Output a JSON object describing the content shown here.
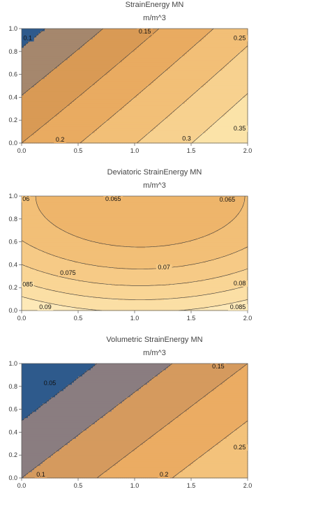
{
  "chart_data": [
    {
      "type": "contour",
      "title": "StrainEnergy MN",
      "subtitle": "m/m^3",
      "xlim": [
        0,
        2
      ],
      "ylim": [
        0,
        1
      ],
      "x_ticks": [
        "0.0",
        "0.5",
        "1.0",
        "1.5",
        "2.0"
      ],
      "y_ticks": [
        "0.0",
        "0.2",
        "0.4",
        "0.6",
        "0.8",
        "1.0"
      ],
      "contour_levels": [
        0.1,
        0.15,
        0.2,
        0.25,
        0.3,
        0.35
      ],
      "contour_labels": [
        {
          "text": "0.1",
          "x": 0.02,
          "y": 0.9
        },
        {
          "text": "0.15",
          "x": 1.09,
          "y": 0.98
        },
        {
          "text": "0.25",
          "x": 1.99,
          "y": 0.9
        },
        {
          "text": "0.2",
          "x": 0.34,
          "y": 0.01
        },
        {
          "text": "0.3",
          "x": 1.46,
          "y": 0.02
        },
        {
          "text": "0.35",
          "x": 2.0,
          "y": 0.11
        }
      ]
    },
    {
      "type": "contour",
      "title": "Deviatoric StrainEnergy MN",
      "subtitle": "m/m^3",
      "xlim": [
        0,
        2
      ],
      "ylim": [
        0,
        1
      ],
      "x_ticks": [
        "0.0",
        "0.5",
        "1.0",
        "1.5",
        "2.0"
      ],
      "y_ticks": [
        "0.0",
        "0.2",
        "0.4",
        "0.6",
        "0.8",
        "1.0"
      ],
      "contour_levels": [
        0.065,
        0.07,
        0.075,
        0.08,
        0.085,
        0.09
      ],
      "contour_labels": [
        {
          "text": "06",
          "x": 0.01,
          "y": 0.98
        },
        {
          "text": "0.065",
          "x": 0.81,
          "y": 0.98
        },
        {
          "text": "0.065",
          "x": 1.82,
          "y": 0.95
        },
        {
          "text": "0.075",
          "x": 0.41,
          "y": 0.31
        },
        {
          "text": "0.07",
          "x": 1.26,
          "y": 0.36
        },
        {
          "text": "085",
          "x": 0.01,
          "y": 0.21
        },
        {
          "text": "0.08",
          "x": 2.0,
          "y": 0.22
        },
        {
          "text": "0.09",
          "x": 0.21,
          "y": 0.0
        },
        {
          "text": "0.085",
          "x": 1.92,
          "y": 0.01
        }
      ]
    },
    {
      "type": "contour",
      "title": "Volumetric StrainEnergy MN",
      "subtitle": "m/m^3",
      "xlim": [
        0,
        2
      ],
      "ylim": [
        0,
        1
      ],
      "x_ticks": [
        "0.0",
        "0.5",
        "1.0",
        "1.5",
        "2.0"
      ],
      "y_ticks": [
        "0.0",
        "0.2",
        "0.4",
        "0.6",
        "0.8",
        "1.0"
      ],
      "contour_levels": [
        0.05,
        0.1,
        0.15,
        0.2,
        0.25
      ],
      "contour_labels": [
        {
          "text": "0.05",
          "x": 0.25,
          "y": 0.81
        },
        {
          "text": "0.15",
          "x": 1.74,
          "y": 0.97
        },
        {
          "text": "0.25",
          "x": 1.97,
          "y": 0.25
        },
        {
          "text": "0.1",
          "x": 0.17,
          "y": 0.01
        },
        {
          "text": "0.2",
          "x": 1.26,
          "y": 0.0
        }
      ]
    }
  ]
}
